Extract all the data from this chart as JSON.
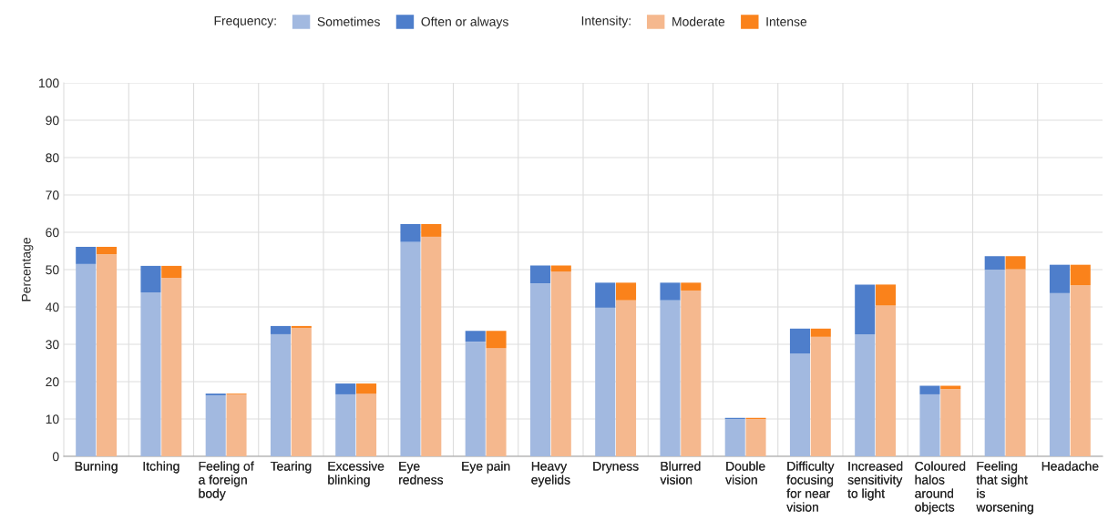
{
  "chart_data": [
    {
      "type": "bar",
      "stacked": true,
      "ylabel": "Percentage",
      "legend_title": "Frequency:",
      "legend": "top",
      "grid": true,
      "categories": [
        "Burning",
        "Itching",
        "Feeling of a foreign body",
        "Tearing",
        "Excessive blinking",
        "Eye redness",
        "Eye pain",
        "Heavy eyelids",
        "Dryness",
        "Blurred vision",
        "Double vision",
        "Difficulty focusing for near vision",
        "Increased sensitivity to light",
        "Coloured halos around objects",
        "Feeling that sight is worsening",
        "Headache"
      ],
      "ylim": [
        0,
        100
      ],
      "yticks": [
        0,
        10,
        20,
        30,
        40,
        50,
        60,
        70,
        80,
        90,
        100
      ],
      "series": [
        {
          "name": "Sometimes",
          "color": "#a2b9e0",
          "values": [
            51.5,
            43.9,
            16.3,
            32.7,
            16.6,
            57.4,
            30.7,
            46.3,
            39.8,
            41.8,
            10.0,
            27.5,
            32.7,
            16.6,
            50.0,
            43.7
          ]
        },
        {
          "name": "Often or always",
          "color": "#4e7ecb",
          "values": [
            4.6,
            7.1,
            0.5,
            2.2,
            2.9,
            4.8,
            2.9,
            4.8,
            6.7,
            4.7,
            0.3,
            6.7,
            13.3,
            2.3,
            3.6,
            7.6
          ]
        }
      ]
    },
    {
      "type": "bar",
      "stacked": true,
      "legend_title": "Intensity:",
      "legend": "top",
      "tick_labels": "x",
      "categories": [
        "Burning",
        "Itching",
        "Feeling of a foreign body",
        "Tearing",
        "Excessive blinking",
        "Eye redness",
        "Eye pain",
        "Heavy eyelids",
        "Dryness",
        "Blurred vision",
        "Double vision",
        "Difficulty focusing for near vision",
        "Increased sensitivity to light",
        "Coloured halos around objects",
        "Feeling that sight is worsening",
        "Headache"
      ],
      "ylim": [
        0,
        100
      ],
      "yticks": [
        0,
        10,
        20,
        30,
        40,
        50,
        60,
        70,
        80,
        90,
        100
      ],
      "series": [
        {
          "name": "Moderate",
          "color": "#f5b88e",
          "values": [
            54.1,
            47.8,
            16.6,
            34.4,
            16.8,
            58.8,
            29.0,
            49.5,
            41.8,
            44.4,
            10.0,
            32.0,
            40.4,
            18.0,
            50.1,
            45.8
          ]
        },
        {
          "name": "Intense",
          "color": "#fa821b",
          "values": [
            2.0,
            3.2,
            0.2,
            0.5,
            2.7,
            3.4,
            4.6,
            1.6,
            4.7,
            2.1,
            0.3,
            2.2,
            5.6,
            0.9,
            3.5,
            5.5
          ]
        }
      ]
    }
  ]
}
